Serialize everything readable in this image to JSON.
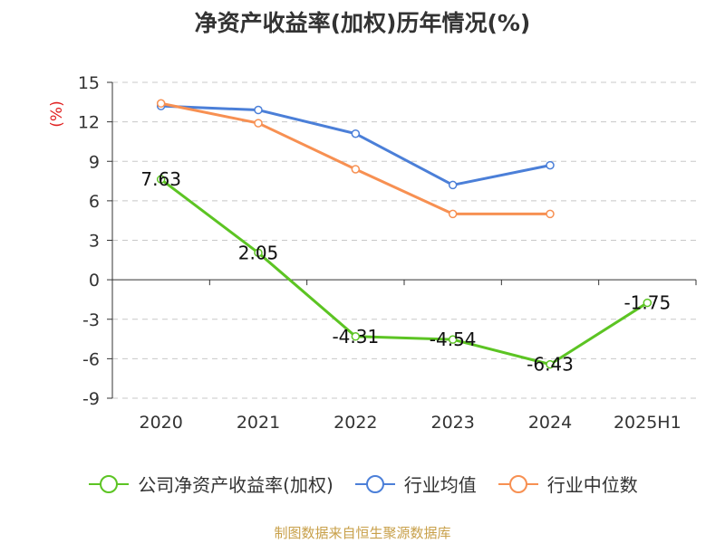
{
  "title": "净资产收益率(加权)历年情况(%)",
  "source_note": "制图数据来自恒生聚源数据库",
  "colors": {
    "axis": "#333333",
    "grid": "#c8c8c8",
    "ylabel": "#e02020",
    "series": [
      "#5cc423",
      "#4b7fd8",
      "#f79052"
    ]
  },
  "chart_data": {
    "type": "line",
    "title": "净资产收益率(加权)历年情况(%)",
    "xlabel": "",
    "ylabel": "(%)",
    "categories": [
      "2020",
      "2021",
      "2022",
      "2023",
      "2024",
      "2025H1"
    ],
    "ylim": [
      -9,
      15
    ],
    "yticks": [
      15,
      12,
      9,
      6,
      3,
      0,
      -3,
      -6,
      -9
    ],
    "grid": true,
    "legend_position": "bottom",
    "series": [
      {
        "name": "公司净资产收益率(加权)",
        "values": [
          7.63,
          2.05,
          -4.31,
          -4.54,
          -6.43,
          -1.75
        ],
        "labels": [
          "7.63",
          "2.05",
          "-4.31",
          "-4.54",
          "-6.43",
          "-1.75"
        ]
      },
      {
        "name": "行业均值",
        "values": [
          13.2,
          12.9,
          11.1,
          7.2,
          8.7,
          null
        ]
      },
      {
        "name": "行业中位数",
        "values": [
          13.4,
          11.9,
          8.4,
          5.0,
          5.0,
          null
        ]
      }
    ]
  }
}
